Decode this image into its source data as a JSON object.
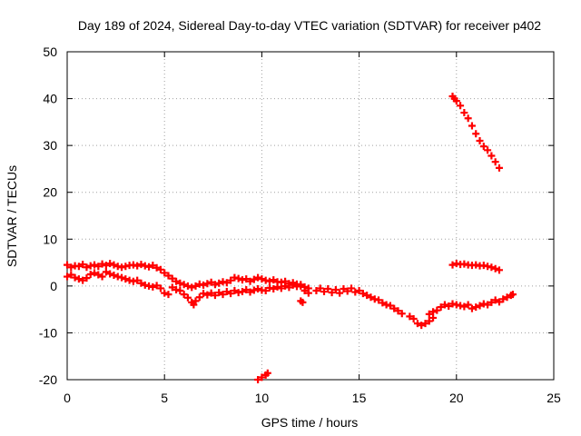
{
  "chart_data": {
    "type": "scatter",
    "title": "Day 189 of 2024, Sidereal Day-to-day VTEC variation (SDTVAR) for receiver p402",
    "xlabel": "GPS time / hours",
    "ylabel": "SDTVAR / TECUs",
    "xlim": [
      0,
      25
    ],
    "ylim": [
      -20,
      50
    ],
    "x_ticks": [
      0,
      5,
      10,
      15,
      20,
      25
    ],
    "y_ticks": [
      -20,
      -10,
      0,
      10,
      20,
      30,
      40,
      50
    ],
    "x_tick_labels": [
      "0",
      "5",
      "10",
      "15",
      "20",
      "25"
    ],
    "y_tick_labels": [
      "-20",
      "-10",
      "0",
      "10",
      "20",
      "30",
      "40",
      "50"
    ],
    "grid": true,
    "marker": "plus",
    "color": "#ff0000",
    "series": [
      {
        "name": "upper band early",
        "points": [
          [
            0.0,
            4.5
          ],
          [
            0.2,
            4.0
          ],
          [
            0.4,
            4.3
          ],
          [
            0.6,
            4.2
          ],
          [
            0.8,
            4.6
          ],
          [
            1.0,
            4.0
          ],
          [
            1.2,
            4.3
          ],
          [
            1.4,
            4.5
          ],
          [
            1.6,
            4.2
          ],
          [
            1.8,
            4.7
          ],
          [
            2.0,
            4.4
          ],
          [
            2.2,
            4.8
          ],
          [
            2.4,
            4.5
          ],
          [
            2.6,
            4.2
          ],
          [
            2.8,
            4.0
          ],
          [
            3.0,
            4.2
          ],
          [
            3.2,
            4.4
          ],
          [
            3.4,
            4.5
          ],
          [
            3.6,
            4.3
          ],
          [
            3.8,
            4.6
          ],
          [
            4.0,
            4.3
          ],
          [
            4.2,
            4.1
          ],
          [
            4.4,
            4.4
          ],
          [
            4.6,
            3.9
          ]
        ]
      },
      {
        "name": "lower band early",
        "points": [
          [
            0.0,
            2.0
          ],
          [
            0.2,
            2.4
          ],
          [
            0.4,
            1.8
          ],
          [
            0.6,
            1.5
          ],
          [
            0.8,
            1.2
          ],
          [
            1.0,
            1.7
          ],
          [
            1.2,
            2.5
          ],
          [
            1.4,
            2.8
          ],
          [
            1.6,
            2.4
          ],
          [
            1.8,
            2.0
          ],
          [
            2.0,
            3.0
          ],
          [
            2.2,
            2.6
          ],
          [
            2.4,
            2.3
          ],
          [
            2.6,
            2.0
          ],
          [
            2.8,
            1.8
          ],
          [
            3.0,
            1.5
          ],
          [
            3.2,
            1.2
          ],
          [
            3.4,
            1.0
          ],
          [
            3.6,
            1.2
          ],
          [
            3.8,
            0.6
          ],
          [
            4.0,
            0.2
          ],
          [
            4.2,
            0.0
          ],
          [
            4.4,
            -0.2
          ],
          [
            4.6,
            0.1
          ],
          [
            4.8,
            -0.5
          ],
          [
            5.0,
            -1.5
          ],
          [
            5.2,
            -1.8
          ],
          [
            5.4,
            -0.3
          ],
          [
            5.6,
            -0.8
          ]
        ]
      },
      {
        "name": "upper band mid",
        "points": [
          [
            4.8,
            3.5
          ],
          [
            5.0,
            2.8
          ],
          [
            5.2,
            2.2
          ],
          [
            5.4,
            1.6
          ],
          [
            5.6,
            1.0
          ],
          [
            5.8,
            0.6
          ],
          [
            6.0,
            0.3
          ],
          [
            6.2,
            0.0
          ],
          [
            6.4,
            -0.3
          ],
          [
            6.6,
            0.0
          ],
          [
            6.8,
            0.4
          ],
          [
            7.0,
            0.2
          ],
          [
            7.2,
            0.5
          ],
          [
            7.4,
            0.8
          ],
          [
            7.6,
            0.3
          ],
          [
            7.8,
            0.6
          ],
          [
            8.0,
            0.9
          ],
          [
            8.2,
            0.7
          ],
          [
            8.4,
            1.2
          ],
          [
            8.6,
            1.8
          ],
          [
            8.8,
            1.6
          ],
          [
            9.0,
            1.3
          ],
          [
            9.2,
            1.5
          ],
          [
            9.4,
            1.0
          ],
          [
            9.6,
            1.4
          ],
          [
            9.8,
            1.8
          ],
          [
            10.0,
            1.5
          ],
          [
            10.2,
            1.2
          ],
          [
            10.4,
            1.0
          ],
          [
            10.6,
            1.3
          ],
          [
            10.8,
            0.9
          ],
          [
            11.0,
            0.8
          ],
          [
            11.2,
            1.0
          ],
          [
            11.4,
            0.5
          ],
          [
            11.6,
            0.7
          ],
          [
            11.8,
            0.4
          ],
          [
            12.0,
            0.3
          ],
          [
            12.2,
            -0.2
          ],
          [
            12.4,
            -0.5
          ]
        ]
      },
      {
        "name": "lower band mid",
        "points": [
          [
            5.8,
            -1.0
          ],
          [
            6.0,
            -1.8
          ],
          [
            6.2,
            -2.5
          ],
          [
            6.4,
            -3.5
          ],
          [
            6.5,
            -4.0
          ],
          [
            6.6,
            -3.2
          ],
          [
            6.8,
            -2.4
          ],
          [
            7.0,
            -1.6
          ],
          [
            7.2,
            -1.9
          ],
          [
            7.4,
            -1.5
          ],
          [
            7.6,
            -2.0
          ],
          [
            7.8,
            -1.4
          ],
          [
            8.0,
            -1.8
          ],
          [
            8.2,
            -1.2
          ],
          [
            8.4,
            -1.6
          ],
          [
            8.6,
            -1.0
          ],
          [
            8.8,
            -1.4
          ],
          [
            9.0,
            -1.2
          ],
          [
            9.2,
            -0.8
          ],
          [
            9.4,
            -1.3
          ],
          [
            9.6,
            -0.9
          ],
          [
            9.8,
            -0.6
          ],
          [
            10.0,
            -0.9
          ],
          [
            10.2,
            -1.0
          ],
          [
            10.4,
            -0.4
          ],
          [
            10.6,
            -0.6
          ],
          [
            10.8,
            -0.2
          ],
          [
            11.0,
            -0.5
          ],
          [
            11.2,
            0.0
          ],
          [
            11.4,
            -0.3
          ],
          [
            11.6,
            0.2
          ],
          [
            11.8,
            -0.1
          ],
          [
            12.0,
            0.0
          ],
          [
            12.2,
            -1.0
          ],
          [
            12.4,
            -1.5
          ]
        ]
      },
      {
        "name": "isolated dips",
        "points": [
          [
            12.0,
            -3.2
          ],
          [
            12.1,
            -3.5
          ],
          [
            9.8,
            -20.0
          ],
          [
            10.0,
            -19.5
          ],
          [
            10.2,
            -19.0
          ],
          [
            10.3,
            -18.6
          ]
        ]
      },
      {
        "name": "afternoon decline",
        "points": [
          [
            12.8,
            -1.0
          ],
          [
            13.0,
            -0.5
          ],
          [
            13.2,
            -1.2
          ],
          [
            13.4,
            -0.6
          ],
          [
            13.6,
            -1.4
          ],
          [
            13.8,
            -0.8
          ],
          [
            14.0,
            -1.5
          ],
          [
            14.2,
            -0.6
          ],
          [
            14.4,
            -1.1
          ],
          [
            14.6,
            -0.5
          ],
          [
            14.8,
            -1.3
          ],
          [
            15.0,
            -1.0
          ],
          [
            15.2,
            -1.6
          ],
          [
            15.4,
            -2.0
          ],
          [
            15.6,
            -2.4
          ],
          [
            15.8,
            -2.8
          ],
          [
            16.0,
            -3.0
          ],
          [
            16.2,
            -3.6
          ],
          [
            16.4,
            -4.0
          ],
          [
            16.6,
            -4.2
          ],
          [
            16.8,
            -4.8
          ],
          [
            17.0,
            -5.3
          ],
          [
            17.2,
            -5.9
          ]
        ]
      },
      {
        "name": "late recovery",
        "points": [
          [
            17.6,
            -6.5
          ],
          [
            17.8,
            -7.0
          ],
          [
            18.0,
            -8.0
          ],
          [
            18.2,
            -8.4
          ],
          [
            18.4,
            -8.0
          ],
          [
            18.6,
            -7.5
          ],
          [
            18.8,
            -6.8
          ],
          [
            18.6,
            -6.0
          ],
          [
            18.8,
            -5.5
          ],
          [
            19.0,
            -5.2
          ],
          [
            19.2,
            -4.5
          ],
          [
            19.4,
            -4.0
          ],
          [
            19.6,
            -4.3
          ],
          [
            19.8,
            -3.8
          ],
          [
            20.0,
            -4.0
          ],
          [
            20.2,
            -4.2
          ],
          [
            20.4,
            -4.4
          ],
          [
            20.6,
            -4.0
          ],
          [
            20.8,
            -4.8
          ],
          [
            21.0,
            -4.5
          ],
          [
            21.2,
            -4.2
          ],
          [
            21.4,
            -3.8
          ],
          [
            21.6,
            -4.0
          ],
          [
            21.8,
            -3.5
          ],
          [
            22.0,
            -3.0
          ],
          [
            22.2,
            -3.4
          ],
          [
            22.4,
            -2.8
          ],
          [
            22.6,
            -2.4
          ],
          [
            22.8,
            -2.0
          ],
          [
            22.9,
            -1.8
          ]
        ]
      },
      {
        "name": "late plateau",
        "points": [
          [
            19.8,
            4.5
          ],
          [
            20.0,
            4.8
          ],
          [
            20.2,
            4.6
          ],
          [
            20.4,
            4.7
          ],
          [
            20.6,
            4.5
          ],
          [
            20.8,
            4.4
          ],
          [
            21.0,
            4.5
          ],
          [
            21.2,
            4.3
          ],
          [
            21.4,
            4.4
          ],
          [
            21.6,
            4.2
          ],
          [
            21.8,
            4.0
          ],
          [
            22.0,
            3.7
          ],
          [
            22.2,
            3.4
          ]
        ]
      },
      {
        "name": "steep descent",
        "points": [
          [
            19.8,
            40.5
          ],
          [
            19.9,
            40.0
          ],
          [
            20.0,
            39.5
          ],
          [
            20.2,
            38.5
          ],
          [
            20.4,
            37.0
          ],
          [
            20.6,
            35.8
          ],
          [
            20.8,
            34.2
          ],
          [
            21.0,
            32.5
          ],
          [
            21.2,
            31.0
          ],
          [
            21.4,
            29.8
          ],
          [
            21.6,
            29.0
          ],
          [
            21.8,
            27.8
          ],
          [
            22.0,
            26.5
          ],
          [
            22.2,
            25.2
          ]
        ]
      }
    ]
  }
}
